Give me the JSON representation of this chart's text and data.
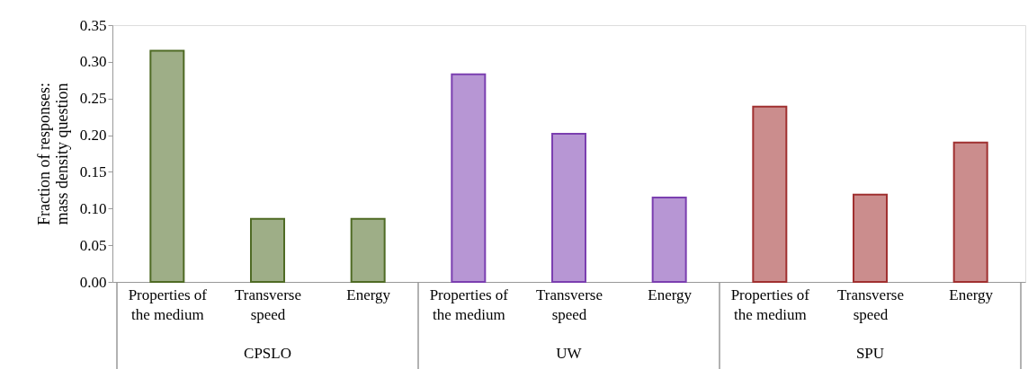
{
  "chart_data": {
    "type": "bar",
    "ylabel": "Fraction of responses: mass density question",
    "categories": [
      "Properties of the medium",
      "Transverse speed",
      "Energy",
      "Properties of the medium",
      "Transverse speed",
      "Energy",
      "Properties of the medium",
      "Transverse speed",
      "Energy"
    ],
    "series": [
      {
        "color": "#4f6b25",
        "values": [
          0.315,
          0.086,
          0.086,
          null,
          null,
          null,
          null,
          null,
          null
        ]
      },
      {
        "color": "#7b3fb0",
        "values": [
          null,
          null,
          null,
          0.283,
          0.202,
          0.115,
          null,
          null,
          null
        ]
      },
      {
        "color": "#a03030",
        "values": [
          null,
          null,
          null,
          null,
          null,
          null,
          0.239,
          0.119,
          0.19
        ]
      }
    ],
    "annotations": [
      "CPSLO",
      "UW",
      "SPU"
    ],
    "ylim": [
      0,
      0.35
    ],
    "yticks": [
      {
        "value": 0,
        "label": "0.00"
      },
      0.05,
      {
        "value": 0.1,
        "label": "0.10"
      },
      0.15,
      {
        "value": 0.2,
        "label": "0.20"
      },
      0.25,
      {
        "value": 0.3,
        "label": "0.30"
      },
      0.35
    ],
    "grid": false,
    "legend": false
  }
}
